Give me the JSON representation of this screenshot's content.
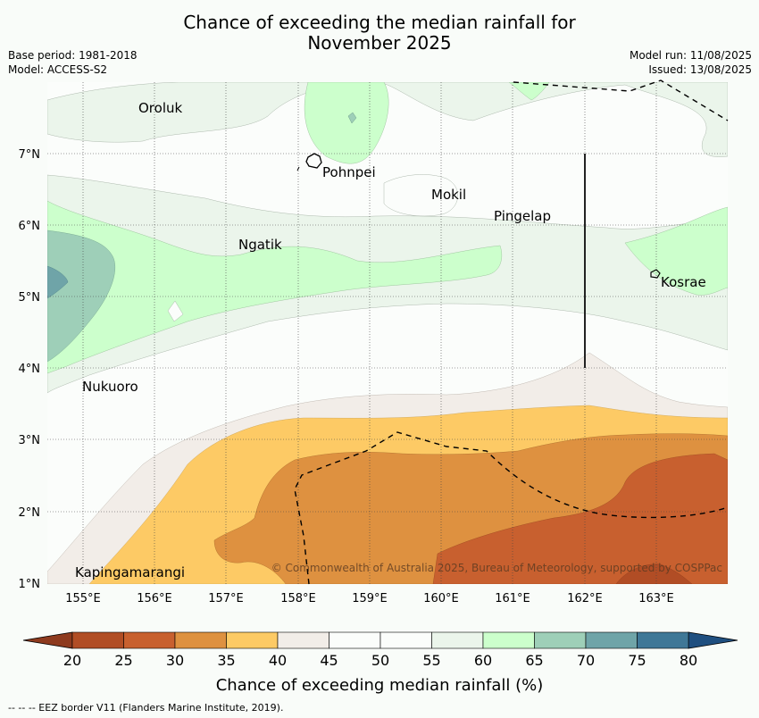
{
  "title_line1": "Chance of exceeding the median rainfall for",
  "title_line2": "November 2025",
  "base_period": "Base period: 1981-2018",
  "model": "Model: ACCESS-S2",
  "model_run": "Model run: 11/08/2025",
  "issued": "Issued: 13/08/2025",
  "copyright": "© Commonwealth of Australia 2025, Bureau of Meteorology, supported by COSPPac",
  "footnote": "--  --  -- EEZ border V11 (Flanders Marine Institute, 2019).",
  "map": {
    "lon_labels": [
      "155°E",
      "156°E",
      "157°E",
      "158°E",
      "159°E",
      "160°E",
      "161°E",
      "162°E",
      "163°E"
    ],
    "lat_labels": [
      "7°N",
      "6°N",
      "5°N",
      "4°N",
      "3°N",
      "2°N",
      "1°N"
    ],
    "places": [
      "Oroluk",
      "Pohnpei",
      "Mokil",
      "Pingelap",
      "Ngatik",
      "Kosrae",
      "Nukuoro",
      "Kapingamarangi"
    ]
  },
  "colorbar": {
    "label": "Chance of exceeding median rainfall (%)",
    "ticks": [
      "20",
      "25",
      "30",
      "35",
      "40",
      "45",
      "50",
      "55",
      "60",
      "65",
      "70",
      "75",
      "80"
    ],
    "colors": [
      "#b14d25",
      "#c8602f",
      "#de9140",
      "#fdca65",
      "#f2ede8",
      "#fbfdfb",
      "#fbfdfb",
      "#ebf5eb",
      "#ccffcc",
      "#9ecfb8",
      "#6fa4a8",
      "#3f7797"
    ],
    "under_color": "#8e3a1e",
    "over_color": "#1f4f80"
  }
}
